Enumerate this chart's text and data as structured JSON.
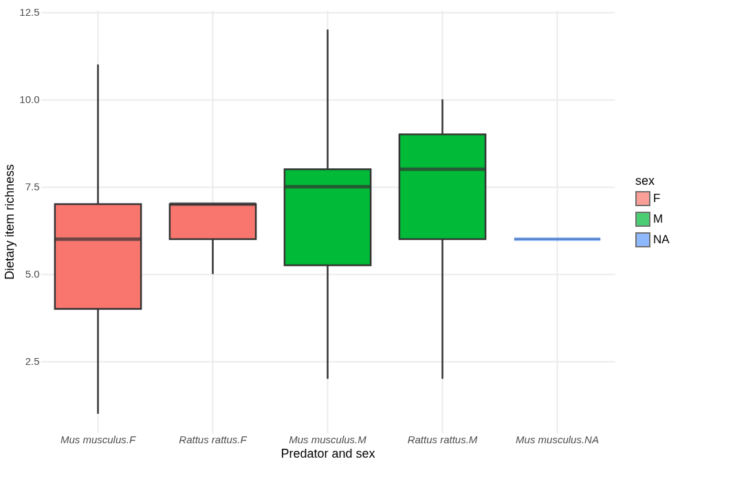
{
  "chart_data": {
    "type": "box",
    "xlabel": "Predator and sex",
    "ylabel": "Dietary item richness",
    "legend_title": "sex",
    "categories": [
      "Mus musculus.F",
      "Rattus rattus.F",
      "Mus musculus.M",
      "Rattus rattus.M",
      "Mus musculus.NA"
    ],
    "ylim": [
      0.45,
      12.55
    ],
    "yticks": [
      2.5,
      {
        "value": 5,
        "label": "5.0"
      },
      7.5,
      {
        "value": 10,
        "label": "10.0"
      },
      12.5
    ],
    "grid": true,
    "legend": "right",
    "series": [
      {
        "name": "F",
        "color": "#f8766d",
        "boxes": [
          {
            "low": 1,
            "q1": 4,
            "median": 6,
            "q3": 7,
            "high": 11
          },
          {
            "low": 5,
            "q1": 6,
            "median": 7,
            "q3": 7,
            "high": 7
          },
          null,
          null,
          null
        ]
      },
      {
        "name": "M",
        "color": "#00ba38",
        "boxes": [
          null,
          null,
          {
            "low": 2,
            "q1": 5.25,
            "median": 7.5,
            "q3": 8,
            "high": 12
          },
          {
            "low": 2,
            "q1": 6,
            "median": 8,
            "q3": 9,
            "high": 10
          },
          null
        ]
      },
      {
        "name": "NA",
        "color": "#619cff",
        "boxes": [
          null,
          null,
          null,
          null,
          {
            "low": 6,
            "q1": 6,
            "median": 6,
            "q3": 6,
            "high": 6
          }
        ]
      }
    ]
  }
}
